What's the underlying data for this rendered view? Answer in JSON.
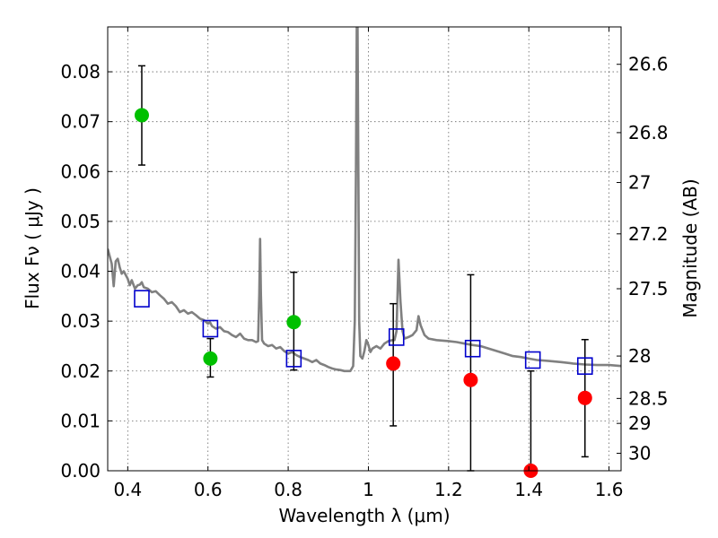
{
  "chart_data": {
    "type": "scatter",
    "title": "",
    "xlabel": "Wavelength  λ (μm)",
    "ylabel": "Flux  Fν  ( μJy )",
    "ylabel_right": "Magnitude (AB)",
    "xlim": [
      0.35,
      1.63
    ],
    "ylim": [
      0.0,
      0.089
    ],
    "grid": true,
    "x_ticks": [
      0.4,
      0.6,
      0.8,
      1.0,
      1.2,
      1.4,
      1.6
    ],
    "x_tick_labels": [
      "0.4",
      "0.6",
      "0.8",
      "1",
      "1.2",
      "1.4",
      "1.6"
    ],
    "y_ticks": [
      0.0,
      0.01,
      0.02,
      0.03,
      0.04,
      0.05,
      0.06,
      0.07,
      0.08
    ],
    "y_tick_labels": [
      "0.00",
      "0.01",
      "0.02",
      "0.03",
      "0.04",
      "0.05",
      "0.06",
      "0.07",
      "0.08"
    ],
    "right_ticks": [
      {
        "flux": 0.0815,
        "label": "26.6"
      },
      {
        "flux": 0.0678,
        "label": "26.8"
      },
      {
        "flux": 0.0578,
        "label": "27"
      },
      {
        "flux": 0.0475,
        "label": "27.2"
      },
      {
        "flux": 0.0365,
        "label": "27.5"
      },
      {
        "flux": 0.023,
        "label": "28"
      },
      {
        "flux": 0.0145,
        "label": "28.5"
      },
      {
        "flux": 0.0095,
        "label": "29"
      },
      {
        "flux": 0.0035,
        "label": "30"
      }
    ],
    "series": [
      {
        "marker": "circle",
        "color": "#00c000",
        "points": [
          {
            "x": 0.435,
            "y": 0.0713,
            "err_low": 0.0613,
            "err_high": 0.0812
          },
          {
            "x": 0.606,
            "y": 0.0225,
            "err_low": 0.0188,
            "err_high": 0.0265
          },
          {
            "x": 0.814,
            "y": 0.0298,
            "err_low": 0.0202,
            "err_high": 0.0398
          }
        ]
      },
      {
        "marker": "circle",
        "color": "#ff0000",
        "points": [
          {
            "x": 1.062,
            "y": 0.0215,
            "err_low": 0.009,
            "err_high": 0.0335
          },
          {
            "x": 1.255,
            "y": 0.0182,
            "err_low": 0.0,
            "err_high": 0.0393
          },
          {
            "x": 1.405,
            "y": 0.0,
            "err_low": 0.0,
            "err_high": 0.02
          },
          {
            "x": 1.54,
            "y": 0.0146,
            "err_low": 0.0028,
            "err_high": 0.0263
          }
        ]
      },
      {
        "marker": "open-square",
        "color": "#0000cc",
        "points": [
          {
            "x": 0.435,
            "y": 0.0345
          },
          {
            "x": 0.606,
            "y": 0.0285
          },
          {
            "x": 0.814,
            "y": 0.0225
          },
          {
            "x": 1.07,
            "y": 0.0268
          },
          {
            "x": 1.26,
            "y": 0.0245
          },
          {
            "x": 1.41,
            "y": 0.0222
          },
          {
            "x": 1.54,
            "y": 0.021
          }
        ]
      }
    ],
    "sed_curve": {
      "color": "#808080",
      "points": [
        [
          0.35,
          0.0445
        ],
        [
          0.36,
          0.0415
        ],
        [
          0.365,
          0.037
        ],
        [
          0.37,
          0.042
        ],
        [
          0.375,
          0.0425
        ],
        [
          0.38,
          0.0408
        ],
        [
          0.385,
          0.0395
        ],
        [
          0.39,
          0.04
        ],
        [
          0.4,
          0.0385
        ],
        [
          0.405,
          0.0372
        ],
        [
          0.41,
          0.0382
        ],
        [
          0.418,
          0.0365
        ],
        [
          0.425,
          0.0372
        ],
        [
          0.43,
          0.0373
        ],
        [
          0.435,
          0.0378
        ],
        [
          0.44,
          0.0368
        ],
        [
          0.45,
          0.0365
        ],
        [
          0.46,
          0.0358
        ],
        [
          0.47,
          0.036
        ],
        [
          0.48,
          0.0352
        ],
        [
          0.49,
          0.0345
        ],
        [
          0.5,
          0.0335
        ],
        [
          0.51,
          0.0338
        ],
        [
          0.52,
          0.033
        ],
        [
          0.53,
          0.0318
        ],
        [
          0.54,
          0.0322
        ],
        [
          0.55,
          0.0315
        ],
        [
          0.56,
          0.0318
        ],
        [
          0.57,
          0.0312
        ],
        [
          0.58,
          0.0305
        ],
        [
          0.59,
          0.0302
        ],
        [
          0.6,
          0.0295
        ],
        [
          0.605,
          0.0298
        ],
        [
          0.61,
          0.029
        ],
        [
          0.62,
          0.0285
        ],
        [
          0.63,
          0.0288
        ],
        [
          0.64,
          0.028
        ],
        [
          0.65,
          0.0278
        ],
        [
          0.66,
          0.0272
        ],
        [
          0.67,
          0.0268
        ],
        [
          0.68,
          0.0275
        ],
        [
          0.69,
          0.0265
        ],
        [
          0.7,
          0.0262
        ],
        [
          0.71,
          0.0262
        ],
        [
          0.72,
          0.0258
        ],
        [
          0.725,
          0.026
        ],
        [
          0.728,
          0.0355
        ],
        [
          0.73,
          0.0465
        ],
        [
          0.732,
          0.0355
        ],
        [
          0.735,
          0.0262
        ],
        [
          0.74,
          0.0255
        ],
        [
          0.75,
          0.025
        ],
        [
          0.76,
          0.0252
        ],
        [
          0.77,
          0.0245
        ],
        [
          0.78,
          0.0248
        ],
        [
          0.79,
          0.024
        ],
        [
          0.8,
          0.0235
        ],
        [
          0.81,
          0.0238
        ],
        [
          0.82,
          0.0232
        ],
        [
          0.83,
          0.0228
        ],
        [
          0.84,
          0.0225
        ],
        [
          0.85,
          0.0222
        ],
        [
          0.86,
          0.0218
        ],
        [
          0.87,
          0.0222
        ],
        [
          0.88,
          0.0215
        ],
        [
          0.89,
          0.0212
        ],
        [
          0.9,
          0.0208
        ],
        [
          0.91,
          0.0205
        ],
        [
          0.92,
          0.0203
        ],
        [
          0.93,
          0.0202
        ],
        [
          0.94,
          0.02
        ],
        [
          0.955,
          0.02
        ],
        [
          0.962,
          0.021
        ],
        [
          0.966,
          0.03
        ],
        [
          0.969,
          0.06
        ],
        [
          0.971,
          0.089
        ],
        [
          0.973,
          0.089
        ],
        [
          0.975,
          0.06
        ],
        [
          0.977,
          0.03
        ],
        [
          0.98,
          0.023
        ],
        [
          0.985,
          0.0225
        ],
        [
          0.99,
          0.024
        ],
        [
          0.995,
          0.0262
        ],
        [
          1.0,
          0.0252
        ],
        [
          1.005,
          0.0238
        ],
        [
          1.01,
          0.0245
        ],
        [
          1.02,
          0.025
        ],
        [
          1.03,
          0.0245
        ],
        [
          1.04,
          0.0255
        ],
        [
          1.05,
          0.026
        ],
        [
          1.06,
          0.0262
        ],
        [
          1.065,
          0.0262
        ],
        [
          1.07,
          0.028
        ],
        [
          1.075,
          0.0423
        ],
        [
          1.08,
          0.034
        ],
        [
          1.085,
          0.028
        ],
        [
          1.09,
          0.0265
        ],
        [
          1.1,
          0.0268
        ],
        [
          1.11,
          0.0272
        ],
        [
          1.12,
          0.0282
        ],
        [
          1.125,
          0.031
        ],
        [
          1.13,
          0.0292
        ],
        [
          1.14,
          0.0272
        ],
        [
          1.15,
          0.0265
        ],
        [
          1.17,
          0.0262
        ],
        [
          1.2,
          0.026
        ],
        [
          1.22,
          0.0258
        ],
        [
          1.24,
          0.0255
        ],
        [
          1.26,
          0.0252
        ],
        [
          1.28,
          0.025
        ],
        [
          1.3,
          0.0245
        ],
        [
          1.32,
          0.024
        ],
        [
          1.34,
          0.0235
        ],
        [
          1.36,
          0.023
        ],
        [
          1.38,
          0.0228
        ],
        [
          1.4,
          0.0225
        ],
        [
          1.42,
          0.0222
        ],
        [
          1.45,
          0.022
        ],
        [
          1.48,
          0.0218
        ],
        [
          1.51,
          0.0215
        ],
        [
          1.54,
          0.0213
        ],
        [
          1.57,
          0.0212
        ],
        [
          1.6,
          0.0212
        ],
        [
          1.63,
          0.021
        ]
      ]
    }
  }
}
